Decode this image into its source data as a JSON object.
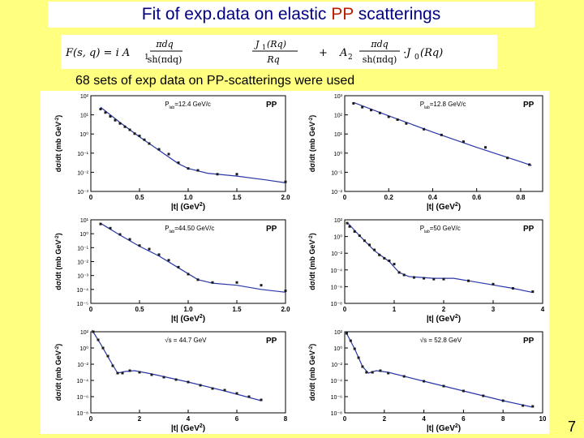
{
  "slide": {
    "title_pre": "Fit of exp.data on elastic ",
    "title_hl": "PP",
    "title_post": " scatterings",
    "subtitle": "68 sets  of  exp data on PP-scatterings were used",
    "page_number": "7",
    "colors": {
      "background": "#ffff80",
      "title_text": "#000080",
      "highlight": "#b81e00",
      "fit_line": "#2a37a8",
      "data_points": "#1a1a1a"
    }
  },
  "formula": {
    "lhs": "F(s, q) = i A",
    "sub1": "1",
    "frac1_num": "πdq",
    "frac1_den": "sh(πdq)",
    "frac2_num": "J",
    "frac2_num_sub": "1",
    "frac2_num_arg": "(Rq)",
    "frac2_den": "Rq",
    "plus": "+",
    "a2": "A",
    "sub2": "2",
    "frac3_num": "πdq",
    "frac3_den": "sh(πdq)",
    "tail": "·J",
    "tail_sub": "0",
    "tail_arg": "(Rq)"
  },
  "chart_data": [
    {
      "type": "scatter",
      "energy_label": "P",
      "energy_sub": "lab",
      "energy_value": "=12.4 GeV/c",
      "tag": "PP",
      "xlabel": "|t|  (GeV",
      "xlabel_sup": "2",
      "xlabel_end": ")",
      "ylabel": "dσ/dt (mb GeV",
      "ylabel_sup": "-2",
      "ylabel_end": ")",
      "log_y": true,
      "xlim": [
        0,
        2.0
      ],
      "ylim_exp": [
        -3,
        2
      ],
      "xticks": [
        "0",
        "0.5",
        "1.0",
        "1.5",
        "2.0"
      ],
      "xtick_values": [
        0,
        0.5,
        1.0,
        1.5,
        2.0
      ],
      "ytick_labels": [
        "10⁻³",
        "10⁻²",
        "10⁻¹",
        "10⁰",
        "10¹",
        "10²"
      ],
      "points": [
        [
          0.1,
          1.3
        ],
        [
          0.15,
          1.12
        ],
        [
          0.2,
          0.92
        ],
        [
          0.25,
          0.72
        ],
        [
          0.3,
          0.55
        ],
        [
          0.35,
          0.38
        ],
        [
          0.4,
          0.22
        ],
        [
          0.45,
          0.02
        ],
        [
          0.5,
          -0.1
        ],
        [
          0.55,
          -0.3
        ],
        [
          0.6,
          -0.5
        ],
        [
          0.7,
          -0.8
        ],
        [
          0.8,
          -1.05
        ],
        [
          0.9,
          -1.5
        ],
        [
          1.0,
          -1.8
        ],
        [
          1.1,
          -1.9
        ],
        [
          1.3,
          -2.1
        ],
        [
          1.5,
          -2.1
        ],
        [
          2.0,
          -2.5
        ]
      ],
      "fit": [
        [
          0.1,
          1.4
        ],
        [
          0.3,
          0.6
        ],
        [
          0.5,
          -0.15
        ],
        [
          0.7,
          -0.85
        ],
        [
          0.9,
          -1.55
        ],
        [
          1.0,
          -1.8
        ],
        [
          1.2,
          -2.05
        ],
        [
          1.5,
          -2.2
        ],
        [
          1.8,
          -2.4
        ],
        [
          2.0,
          -2.55
        ]
      ]
    },
    {
      "type": "scatter",
      "energy_label": "P",
      "energy_sub": "lab",
      "energy_value": "=12.8 GeV/c",
      "tag": "PP",
      "xlabel": "|t|  (GeV",
      "xlabel_sup": "2",
      "xlabel_end": ")",
      "ylabel": "dσ/dt (mb GeV",
      "ylabel_sup": "-2",
      "ylabel_end": ")",
      "log_y": true,
      "xlim": [
        0,
        0.9
      ],
      "ylim_exp": [
        -2,
        3
      ],
      "xticks": [
        "0",
        "0.2",
        "0.4",
        "0.6",
        "0.8"
      ],
      "xtick_values": [
        0,
        0.2,
        0.4,
        0.6,
        0.8
      ],
      "ytick_labels": [
        "10⁻²",
        "10⁻¹",
        "10⁰",
        "10¹",
        "10²",
        "10³"
      ],
      "points": [
        [
          0.04,
          2.6
        ],
        [
          0.08,
          2.4
        ],
        [
          0.12,
          2.25
        ],
        [
          0.16,
          2.1
        ],
        [
          0.2,
          1.9
        ],
        [
          0.24,
          1.75
        ],
        [
          0.28,
          1.55
        ],
        [
          0.36,
          1.25
        ],
        [
          0.44,
          0.95
        ],
        [
          0.54,
          0.6
        ],
        [
          0.64,
          0.3
        ],
        [
          0.74,
          -0.25
        ],
        [
          0.84,
          -0.6
        ]
      ],
      "fit": [
        [
          0.04,
          2.65
        ],
        [
          0.2,
          1.95
        ],
        [
          0.4,
          1.1
        ],
        [
          0.6,
          0.3
        ],
        [
          0.8,
          -0.45
        ],
        [
          0.85,
          -0.65
        ]
      ]
    },
    {
      "type": "scatter",
      "energy_label": "P",
      "energy_sub": "lab",
      "energy_value": "=44.50 GeV/c",
      "tag": "PP",
      "xlabel": "|t|  (GeV",
      "xlabel_sup": "2",
      "xlabel_end": ")",
      "ylabel": "dσ/dt (mb GeV",
      "ylabel_sup": "-2",
      "ylabel_end": ")",
      "log_y": true,
      "xlim": [
        0,
        2.0
      ],
      "ylim_exp": [
        -5,
        1
      ],
      "xticks": [
        "0",
        "0.5",
        "1.0",
        "1.5",
        "2.0"
      ],
      "xtick_values": [
        0,
        0.5,
        1.0,
        1.5,
        2.0
      ],
      "ytick_labels": [
        "10⁻⁵",
        "10⁻⁴",
        "10⁻³",
        "10⁻²",
        "10⁻¹",
        "10⁰",
        "10¹"
      ],
      "points": [
        [
          0.1,
          0.7
        ],
        [
          0.2,
          0.4
        ],
        [
          0.3,
          -0.05
        ],
        [
          0.4,
          -0.4
        ],
        [
          0.5,
          -0.85
        ],
        [
          0.6,
          -1.1
        ],
        [
          0.7,
          -1.5
        ],
        [
          0.8,
          -1.9
        ],
        [
          0.9,
          -2.4
        ],
        [
          1.0,
          -2.9
        ],
        [
          1.1,
          -3.3
        ],
        [
          1.25,
          -3.5
        ],
        [
          1.5,
          -3.5
        ],
        [
          1.75,
          -3.7
        ],
        [
          2.0,
          -4.1
        ]
      ],
      "fit": [
        [
          0.1,
          0.75
        ],
        [
          0.3,
          -0.1
        ],
        [
          0.5,
          -0.9
        ],
        [
          0.7,
          -1.6
        ],
        [
          0.9,
          -2.45
        ],
        [
          1.1,
          -3.3
        ],
        [
          1.25,
          -3.55
        ],
        [
          1.5,
          -3.7
        ],
        [
          1.75,
          -4.0
        ],
        [
          2.0,
          -4.2
        ]
      ]
    },
    {
      "type": "scatter",
      "energy_label": "P",
      "energy_sub": "lab",
      "energy_value": "=50 GeV/c",
      "tag": "PP",
      "xlabel": "|t|  (GeV",
      "xlabel_sup": "2",
      "xlabel_end": ")",
      "ylabel": "dσ/dt (mb GeV",
      "ylabel_sup": "-2",
      "ylabel_end": ")",
      "log_y": true,
      "xlim": [
        0,
        4
      ],
      "ylim_exp": [
        -8,
        2
      ],
      "xticks": [
        "0",
        "1",
        "2",
        "3",
        "4"
      ],
      "xtick_values": [
        0,
        1,
        2,
        3,
        4
      ],
      "ytick_labels": [
        "10⁻⁸",
        "10⁻⁶",
        "10⁻⁴",
        "10⁻²",
        "10⁰",
        "10²"
      ],
      "points": [
        [
          0.05,
          1.6
        ],
        [
          0.1,
          1.2
        ],
        [
          0.2,
          0.6
        ],
        [
          0.3,
          0.1
        ],
        [
          0.4,
          -0.5
        ],
        [
          0.5,
          -1.0
        ],
        [
          0.6,
          -1.6
        ],
        [
          0.7,
          -2.2
        ],
        [
          0.8,
          -2.6
        ],
        [
          0.9,
          -2.9
        ],
        [
          1.0,
          -3.3
        ],
        [
          1.1,
          -4.3
        ],
        [
          1.2,
          -4.6
        ],
        [
          1.4,
          -4.9
        ],
        [
          1.6,
          -5.0
        ],
        [
          1.8,
          -5.1
        ],
        [
          2.0,
          -5.1
        ],
        [
          2.5,
          -5.3
        ],
        [
          3.0,
          -5.7
        ],
        [
          3.4,
          -6.2
        ],
        [
          3.8,
          -6.6
        ]
      ],
      "fit": [
        [
          0.05,
          1.7
        ],
        [
          0.3,
          0.1
        ],
        [
          0.6,
          -1.7
        ],
        [
          0.9,
          -3.0
        ],
        [
          1.1,
          -4.3
        ],
        [
          1.3,
          -4.8
        ],
        [
          1.8,
          -5.0
        ],
        [
          2.2,
          -5.0
        ],
        [
          2.6,
          -5.4
        ],
        [
          3.0,
          -5.8
        ],
        [
          3.4,
          -6.2
        ],
        [
          3.8,
          -6.7
        ]
      ]
    },
    {
      "type": "scatter",
      "energy_label": "√s",
      "energy_sub": "",
      "energy_value": " = 44.7 GeV",
      "tag": "PP",
      "xlabel": "|t|  (GeV",
      "xlabel_sup": "2",
      "xlabel_end": ")",
      "ylabel": "dσ/dt (mb GeV",
      "ylabel_sup": "-2",
      "ylabel_end": ")",
      "log_y": true,
      "xlim": [
        0,
        8
      ],
      "ylim_exp": [
        -8,
        2
      ],
      "xticks": [
        "0",
        "2",
        "4",
        "6",
        "8"
      ],
      "xtick_values": [
        0,
        2,
        4,
        6,
        8
      ],
      "ytick_labels": [
        "10⁻⁸",
        "10⁻⁶",
        "10⁻⁴",
        "10⁻²",
        "10⁰",
        "10²"
      ],
      "points": [
        [
          0.1,
          2.0
        ],
        [
          0.3,
          1.0
        ],
        [
          0.5,
          0.0
        ],
        [
          0.7,
          -1.0
        ],
        [
          0.9,
          -2.2
        ],
        [
          1.1,
          -3.1
        ],
        [
          1.3,
          -3.1
        ],
        [
          1.6,
          -2.8
        ],
        [
          2.0,
          -3.0
        ],
        [
          2.5,
          -3.3
        ],
        [
          3.0,
          -3.6
        ],
        [
          3.5,
          -3.9
        ],
        [
          4.0,
          -4.2
        ],
        [
          4.5,
          -4.6
        ],
        [
          5.0,
          -5.0
        ],
        [
          5.5,
          -5.2
        ],
        [
          6.0,
          -5.6
        ],
        [
          6.5,
          -6.0
        ],
        [
          7.0,
          -6.4
        ]
      ],
      "fit": [
        [
          0.05,
          2.2
        ],
        [
          0.4,
          0.5
        ],
        [
          0.8,
          -1.6
        ],
        [
          1.1,
          -3.1
        ],
        [
          1.4,
          -2.9
        ],
        [
          1.8,
          -2.8
        ],
        [
          2.5,
          -3.2
        ],
        [
          4.0,
          -4.2
        ],
        [
          5.5,
          -5.3
        ],
        [
          7.0,
          -6.5
        ]
      ]
    },
    {
      "type": "scatter",
      "energy_label": "√s",
      "energy_sub": "",
      "energy_value": " = 52.8 GeV",
      "tag": "PP",
      "xlabel": "|t|  (GeV",
      "xlabel_sup": "2",
      "xlabel_end": ")",
      "ylabel": "dσ/dt (mb GeV",
      "ylabel_sup": "-2",
      "ylabel_end": ")",
      "log_y": true,
      "xlim": [
        0,
        10
      ],
      "ylim_exp": [
        -8,
        2
      ],
      "xticks": [
        "0",
        "2",
        "4",
        "6",
        "8",
        "10"
      ],
      "xtick_values": [
        0,
        2,
        4,
        6,
        8,
        10
      ],
      "ytick_labels": [
        "10⁻⁸",
        "10⁻⁶",
        "10⁻⁴",
        "10⁻²",
        "10⁰",
        "10²"
      ],
      "points": [
        [
          0.1,
          1.8
        ],
        [
          0.3,
          0.9
        ],
        [
          0.5,
          -0.1
        ],
        [
          0.7,
          -1.2
        ],
        [
          0.9,
          -2.3
        ],
        [
          1.1,
          -3.0
        ],
        [
          1.4,
          -3.0
        ],
        [
          1.8,
          -2.8
        ],
        [
          2.2,
          -3.1
        ],
        [
          3.0,
          -3.5
        ],
        [
          4.0,
          -4.1
        ],
        [
          5.0,
          -4.7
        ],
        [
          6.0,
          -5.3
        ],
        [
          7.0,
          -5.9
        ],
        [
          8.0,
          -6.5
        ],
        [
          9.0,
          -7.1
        ],
        [
          9.5,
          -7.2
        ]
      ],
      "fit": [
        [
          0.05,
          2.0
        ],
        [
          0.5,
          -0.1
        ],
        [
          0.9,
          -2.3
        ],
        [
          1.2,
          -3.1
        ],
        [
          1.6,
          -2.8
        ],
        [
          2.2,
          -3.0
        ],
        [
          4.0,
          -4.1
        ],
        [
          6.0,
          -5.3
        ],
        [
          8.0,
          -6.5
        ],
        [
          9.5,
          -7.3
        ]
      ]
    }
  ]
}
